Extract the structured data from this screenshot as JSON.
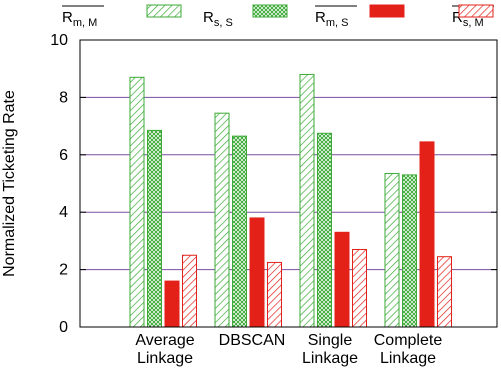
{
  "chart_data": {
    "type": "bar",
    "ylabel": "Normalized Ticketing Rate",
    "ylim": [
      0,
      10
    ],
    "yticks": [
      0,
      2,
      4,
      6,
      8,
      10
    ],
    "grid": "horizontal",
    "legend_position": "top",
    "categories": [
      [
        "Average",
        "Linkage"
      ],
      [
        "DBSCAN",
        ""
      ],
      [
        "Single",
        "Linkage"
      ],
      [
        "Complete",
        "Linkage"
      ]
    ],
    "series": [
      {
        "name": "R",
        "sub": "m, M",
        "overline": true,
        "color": "#3aaa35",
        "pattern": "diag-green",
        "values": [
          8.7,
          7.45,
          8.8,
          5.35
        ]
      },
      {
        "name": "R",
        "sub": "s, S",
        "overline": false,
        "color": "#3aaa35",
        "pattern": "cross-green",
        "values": [
          6.85,
          6.65,
          6.75,
          5.3
        ]
      },
      {
        "name": "R",
        "sub": "m, S",
        "overline": true,
        "color": "#e32119",
        "pattern": "solid-red",
        "values": [
          1.6,
          3.8,
          3.3,
          6.45
        ]
      },
      {
        "name": "R",
        "sub": "s, M",
        "overline": true,
        "color": "#e32119",
        "pattern": "diag-red",
        "values": [
          2.5,
          2.25,
          2.7,
          2.45
        ]
      }
    ]
  }
}
